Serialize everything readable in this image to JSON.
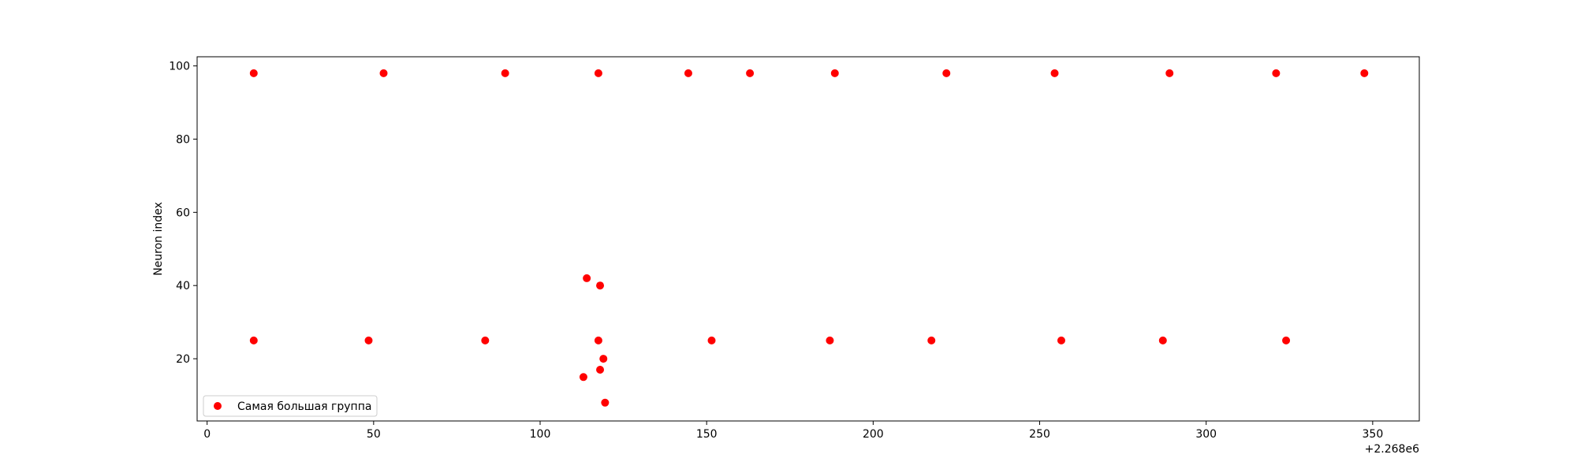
{
  "chart_data": {
    "type": "scatter",
    "title": "",
    "xlabel": "",
    "ylabel": "Neuron index",
    "x_offset_label": "+2.268e6",
    "xlim": [
      -3,
      364
    ],
    "ylim": [
      3,
      102.5
    ],
    "xticks": [
      0,
      50,
      100,
      150,
      200,
      250,
      300,
      350
    ],
    "yticks": [
      20,
      40,
      60,
      80,
      100
    ],
    "grid": false,
    "legend_position": "lower-left",
    "series": [
      {
        "name": "Самая большая группа",
        "color": "#ff0000",
        "points": [
          {
            "x": 14,
            "y": 98
          },
          {
            "x": 53,
            "y": 98
          },
          {
            "x": 89.5,
            "y": 98
          },
          {
            "x": 117.5,
            "y": 98
          },
          {
            "x": 144.5,
            "y": 98
          },
          {
            "x": 163,
            "y": 98
          },
          {
            "x": 188.5,
            "y": 98
          },
          {
            "x": 222,
            "y": 98
          },
          {
            "x": 254.5,
            "y": 98
          },
          {
            "x": 289,
            "y": 98
          },
          {
            "x": 321,
            "y": 98
          },
          {
            "x": 347.5,
            "y": 98
          },
          {
            "x": 14,
            "y": 25
          },
          {
            "x": 48.5,
            "y": 25
          },
          {
            "x": 83.5,
            "y": 25
          },
          {
            "x": 117.5,
            "y": 25
          },
          {
            "x": 151.5,
            "y": 25
          },
          {
            "x": 187,
            "y": 25
          },
          {
            "x": 217.5,
            "y": 25
          },
          {
            "x": 256.5,
            "y": 25
          },
          {
            "x": 287,
            "y": 25
          },
          {
            "x": 324,
            "y": 25
          },
          {
            "x": 114,
            "y": 42
          },
          {
            "x": 118,
            "y": 40
          },
          {
            "x": 119,
            "y": 20
          },
          {
            "x": 118,
            "y": 17
          },
          {
            "x": 113,
            "y": 15
          },
          {
            "x": 119.5,
            "y": 8
          }
        ]
      }
    ]
  }
}
